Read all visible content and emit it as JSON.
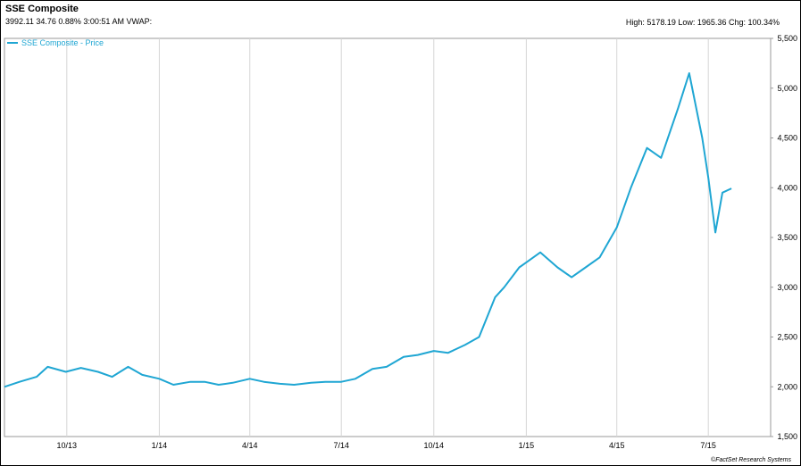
{
  "header": {
    "title": "SSE Composite",
    "quote": "3992.11 34.76 0.88% 3:00:51 AM VWAP:",
    "stats": "High: 5178.19 Low: 1965.36 Chg: 100.34%"
  },
  "footer": {
    "credit": "©FactSet Research Systems"
  },
  "chart_data": {
    "type": "line",
    "title": "SSE Composite",
    "legend": [
      "SSE Composite - Price"
    ],
    "legend_position": "top-left",
    "grid": "vertical",
    "line_color": "#1fa6d3",
    "x_ticks": [
      "10/13",
      "1/14",
      "4/14",
      "7/14",
      "10/14",
      "1/15",
      "4/15",
      "7/15"
    ],
    "y_ticks": [
      "1,500",
      "2,000",
      "2,500",
      "3,000",
      "3,500",
      "4,000",
      "4,500",
      "5,000",
      "5,500"
    ],
    "ylim": [
      1500,
      5500
    ],
    "series": [
      {
        "name": "SSE Composite - Price",
        "x": [
          "2013-07-31",
          "2013-08-15",
          "2013-09-01",
          "2013-09-12",
          "2013-09-30",
          "2013-10-15",
          "2013-11-01",
          "2013-11-15",
          "2013-12-01",
          "2013-12-15",
          "2014-01-01",
          "2014-01-15",
          "2014-02-01",
          "2014-02-15",
          "2014-03-01",
          "2014-03-15",
          "2014-04-01",
          "2014-04-15",
          "2014-05-01",
          "2014-05-15",
          "2014-06-01",
          "2014-06-15",
          "2014-07-01",
          "2014-07-15",
          "2014-08-01",
          "2014-08-15",
          "2014-09-01",
          "2014-09-15",
          "2014-10-01",
          "2014-10-15",
          "2014-11-01",
          "2014-11-15",
          "2014-12-01",
          "2014-12-10",
          "2014-12-25",
          "2015-01-01",
          "2015-01-15",
          "2015-02-01",
          "2015-02-15",
          "2015-03-01",
          "2015-03-15",
          "2015-04-01",
          "2015-04-15",
          "2015-05-01",
          "2015-05-15",
          "2015-06-01",
          "2015-06-12",
          "2015-06-25",
          "2015-07-01",
          "2015-07-08",
          "2015-07-15",
          "2015-07-24"
        ],
        "values": [
          2000,
          2050,
          2100,
          2200,
          2150,
          2190,
          2150,
          2100,
          2200,
          2120,
          2080,
          2020,
          2050,
          2050,
          2020,
          2040,
          2080,
          2050,
          2030,
          2020,
          2040,
          2050,
          2050,
          2080,
          2180,
          2200,
          2300,
          2320,
          2360,
          2340,
          2420,
          2500,
          2900,
          3000,
          3200,
          3250,
          3350,
          3200,
          3100,
          3200,
          3300,
          3600,
          4000,
          4400,
          4300,
          4800,
          5150,
          4500,
          4100,
          3550,
          3950,
          3992
        ]
      }
    ]
  }
}
